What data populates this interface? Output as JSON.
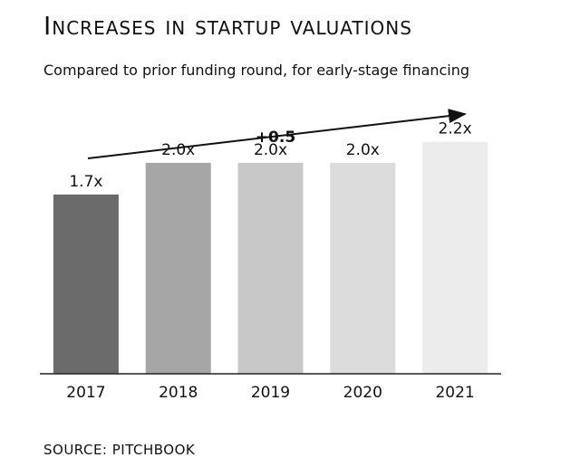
{
  "header": {
    "title": "Increases in startup valuations",
    "subtitle": "Compared to prior funding round, for early-stage financing"
  },
  "footer": {
    "source": "SOURCE: PITCHBOOK"
  },
  "chart_data": {
    "type": "bar",
    "title": "Increases in startup valuations",
    "subtitle": "Compared to prior funding round, for early-stage financing",
    "categories": [
      "2017",
      "2018",
      "2019",
      "2020",
      "2021"
    ],
    "values": [
      1.7,
      2.0,
      2.0,
      2.0,
      2.2
    ],
    "value_labels": [
      "1.7x",
      "2.0x",
      "2.0x",
      "2.0x",
      "2.2x"
    ],
    "bar_colors": [
      "#6b6b6b",
      "#a6a6a6",
      "#c8c8c8",
      "#dcdcdc",
      "#ececec"
    ],
    "annotation": "+0.5",
    "xlabel": "",
    "ylabel": "",
    "ylim": [
      0,
      2.6
    ],
    "grid": false,
    "legend": "none"
  }
}
